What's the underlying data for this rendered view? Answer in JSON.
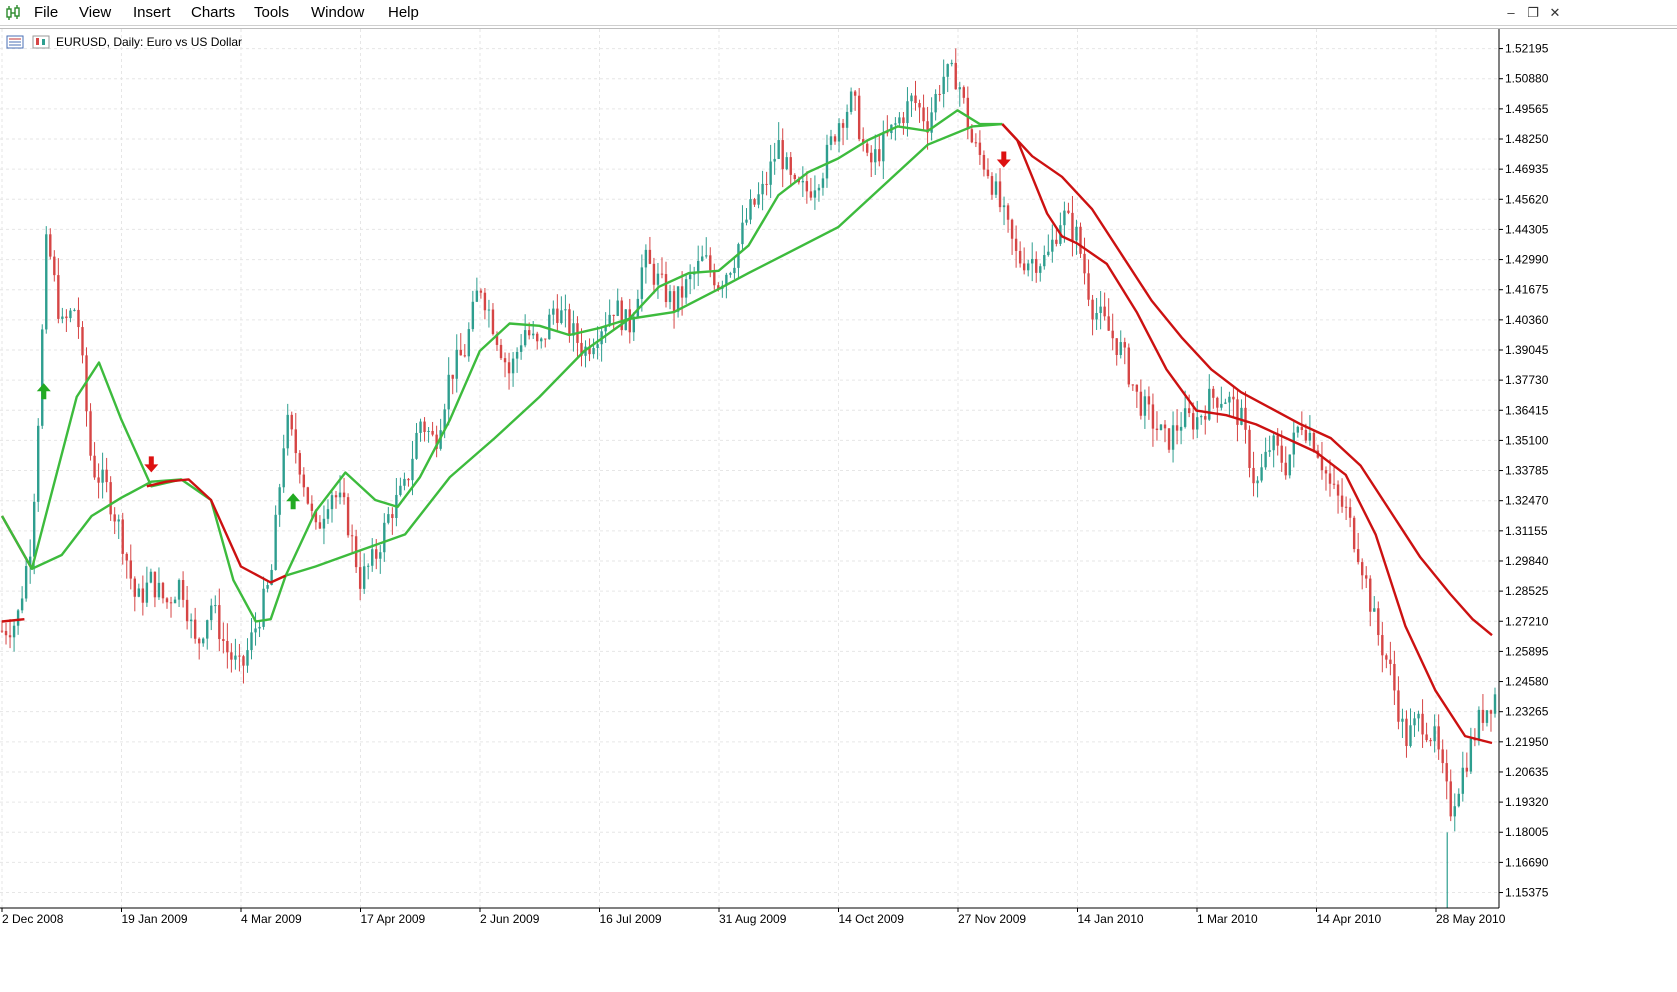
{
  "menu": {
    "items": [
      "File",
      "View",
      "Insert",
      "Charts",
      "Tools",
      "Window",
      "Help"
    ]
  },
  "window_controls": [
    "minimize",
    "restore",
    "close"
  ],
  "chart": {
    "symbol": "EURUSD",
    "timeframe": "Daily",
    "description": "Euro vs US Dollar",
    "title_text": "EURUSD, Daily:  Euro vs US Dollar"
  },
  "chart_data": {
    "type": "candlestick",
    "price_axis_labels": [
      "1.52195",
      "1.50880",
      "1.49565",
      "1.48250",
      "1.46935",
      "1.45620",
      "1.44305",
      "1.42990",
      "1.41675",
      "1.40360",
      "1.39045",
      "1.37730",
      "1.36415",
      "1.35100",
      "1.33785",
      "1.32470",
      "1.31155",
      "1.29840",
      "1.28525",
      "1.27210",
      "1.25895",
      "1.24580",
      "1.23265",
      "1.21950",
      "1.20635",
      "1.19320",
      "1.18005",
      "1.16690",
      "1.15375"
    ],
    "date_axis_labels": [
      "2 Dec 2008",
      "19 Jan 2009",
      "4 Mar 2009",
      "17 Apr 2009",
      "2 Jun 2009",
      "16 Jul 2009",
      "31 Aug 2009",
      "14 Oct 2009",
      "27 Nov 2009",
      "14 Jan 2010",
      "1 Mar 2010",
      "14 Apr 2010",
      "28 May 2010"
    ],
    "ylim": [
      1.147,
      1.527
    ],
    "colors": {
      "bull_candle": "#2e9e8f",
      "bear_candle": "#d64545",
      "bullish_ma": "#3dbb3d",
      "bearish_ma": "#cc1111",
      "up_arrow": "#22aa22",
      "down_arrow": "#dd1111",
      "grid": "#e6e6e6"
    },
    "price_path": [
      {
        "t": 0.0,
        "p": 1.268
      },
      {
        "t": 0.01,
        "p": 1.272
      },
      {
        "t": 0.02,
        "p": 1.31
      },
      {
        "t": 0.025,
        "p": 1.37
      },
      {
        "t": 0.03,
        "p": 1.44
      },
      {
        "t": 0.04,
        "p": 1.4
      },
      {
        "t": 0.05,
        "p": 1.41
      },
      {
        "t": 0.06,
        "p": 1.34
      },
      {
        "t": 0.07,
        "p": 1.33
      },
      {
        "t": 0.08,
        "p": 1.31
      },
      {
        "t": 0.09,
        "p": 1.28
      },
      {
        "t": 0.1,
        "p": 1.29
      },
      {
        "t": 0.11,
        "p": 1.28
      },
      {
        "t": 0.12,
        "p": 1.29
      },
      {
        "t": 0.13,
        "p": 1.26
      },
      {
        "t": 0.14,
        "p": 1.28
      },
      {
        "t": 0.15,
        "p": 1.26
      },
      {
        "t": 0.16,
        "p": 1.25
      },
      {
        "t": 0.17,
        "p": 1.27
      },
      {
        "t": 0.18,
        "p": 1.29
      },
      {
        "t": 0.19,
        "p": 1.36
      },
      {
        "t": 0.2,
        "p": 1.34
      },
      {
        "t": 0.21,
        "p": 1.31
      },
      {
        "t": 0.22,
        "p": 1.33
      },
      {
        "t": 0.23,
        "p": 1.32
      },
      {
        "t": 0.24,
        "p": 1.29
      },
      {
        "t": 0.25,
        "p": 1.3
      },
      {
        "t": 0.26,
        "p": 1.32
      },
      {
        "t": 0.27,
        "p": 1.33
      },
      {
        "t": 0.28,
        "p": 1.36
      },
      {
        "t": 0.29,
        "p": 1.35
      },
      {
        "t": 0.3,
        "p": 1.38
      },
      {
        "t": 0.31,
        "p": 1.39
      },
      {
        "t": 0.32,
        "p": 1.42
      },
      {
        "t": 0.33,
        "p": 1.4
      },
      {
        "t": 0.34,
        "p": 1.38
      },
      {
        "t": 0.35,
        "p": 1.4
      },
      {
        "t": 0.36,
        "p": 1.39
      },
      {
        "t": 0.37,
        "p": 1.41
      },
      {
        "t": 0.38,
        "p": 1.4
      },
      {
        "t": 0.39,
        "p": 1.39
      },
      {
        "t": 0.4,
        "p": 1.4
      },
      {
        "t": 0.41,
        "p": 1.41
      },
      {
        "t": 0.42,
        "p": 1.4
      },
      {
        "t": 0.43,
        "p": 1.43
      },
      {
        "t": 0.44,
        "p": 1.42
      },
      {
        "t": 0.45,
        "p": 1.41
      },
      {
        "t": 0.46,
        "p": 1.42
      },
      {
        "t": 0.47,
        "p": 1.43
      },
      {
        "t": 0.48,
        "p": 1.42
      },
      {
        "t": 0.49,
        "p": 1.43
      },
      {
        "t": 0.5,
        "p": 1.45
      },
      {
        "t": 0.51,
        "p": 1.46
      },
      {
        "t": 0.52,
        "p": 1.48
      },
      {
        "t": 0.53,
        "p": 1.46
      },
      {
        "t": 0.54,
        "p": 1.46
      },
      {
        "t": 0.55,
        "p": 1.47
      },
      {
        "t": 0.56,
        "p": 1.49
      },
      {
        "t": 0.57,
        "p": 1.5
      },
      {
        "t": 0.58,
        "p": 1.47
      },
      {
        "t": 0.59,
        "p": 1.48
      },
      {
        "t": 0.6,
        "p": 1.49
      },
      {
        "t": 0.61,
        "p": 1.5
      },
      {
        "t": 0.62,
        "p": 1.49
      },
      {
        "t": 0.63,
        "p": 1.51
      },
      {
        "t": 0.64,
        "p": 1.51
      },
      {
        "t": 0.65,
        "p": 1.48
      },
      {
        "t": 0.66,
        "p": 1.47
      },
      {
        "t": 0.67,
        "p": 1.45
      },
      {
        "t": 0.68,
        "p": 1.43
      },
      {
        "t": 0.69,
        "p": 1.43
      },
      {
        "t": 0.7,
        "p": 1.43
      },
      {
        "t": 0.71,
        "p": 1.45
      },
      {
        "t": 0.72,
        "p": 1.44
      },
      {
        "t": 0.73,
        "p": 1.41
      },
      {
        "t": 0.74,
        "p": 1.4
      },
      {
        "t": 0.75,
        "p": 1.39
      },
      {
        "t": 0.76,
        "p": 1.37
      },
      {
        "t": 0.77,
        "p": 1.36
      },
      {
        "t": 0.78,
        "p": 1.35
      },
      {
        "t": 0.79,
        "p": 1.36
      },
      {
        "t": 0.8,
        "p": 1.36
      },
      {
        "t": 0.81,
        "p": 1.37
      },
      {
        "t": 0.82,
        "p": 1.37
      },
      {
        "t": 0.83,
        "p": 1.36
      },
      {
        "t": 0.84,
        "p": 1.33
      },
      {
        "t": 0.85,
        "p": 1.35
      },
      {
        "t": 0.86,
        "p": 1.34
      },
      {
        "t": 0.87,
        "p": 1.36
      },
      {
        "t": 0.88,
        "p": 1.35
      },
      {
        "t": 0.89,
        "p": 1.33
      },
      {
        "t": 0.9,
        "p": 1.32
      },
      {
        "t": 0.91,
        "p": 1.3
      },
      {
        "t": 0.92,
        "p": 1.27
      },
      {
        "t": 0.93,
        "p": 1.25
      },
      {
        "t": 0.94,
        "p": 1.22
      },
      {
        "t": 0.95,
        "p": 1.23
      },
      {
        "t": 0.96,
        "p": 1.22
      },
      {
        "t": 0.97,
        "p": 1.19
      },
      {
        "t": 0.98,
        "p": 1.21
      },
      {
        "t": 0.99,
        "p": 1.23
      },
      {
        "t": 1.0,
        "p": 1.24
      }
    ],
    "ma_fast": [
      {
        "t": 0.0,
        "p": 1.318
      },
      {
        "t": 0.02,
        "p": 1.295
      },
      {
        "t": 0.03,
        "p": 1.32
      },
      {
        "t": 0.05,
        "p": 1.37
      },
      {
        "t": 0.065,
        "p": 1.385
      },
      {
        "t": 0.08,
        "p": 1.36
      },
      {
        "t": 0.1,
        "p": 1.331
      },
      {
        "t": 0.12,
        "p": 1.334
      },
      {
        "t": 0.14,
        "p": 1.325
      },
      {
        "t": 0.155,
        "p": 1.29
      },
      {
        "t": 0.17,
        "p": 1.272
      },
      {
        "t": 0.18,
        "p": 1.273
      },
      {
        "t": 0.19,
        "p": 1.292
      },
      {
        "t": 0.21,
        "p": 1.32
      },
      {
        "t": 0.23,
        "p": 1.337
      },
      {
        "t": 0.25,
        "p": 1.325
      },
      {
        "t": 0.265,
        "p": 1.322
      },
      {
        "t": 0.28,
        "p": 1.335
      },
      {
        "t": 0.3,
        "p": 1.36
      },
      {
        "t": 0.32,
        "p": 1.39
      },
      {
        "t": 0.34,
        "p": 1.402
      },
      {
        "t": 0.36,
        "p": 1.401
      },
      {
        "t": 0.38,
        "p": 1.397
      },
      {
        "t": 0.4,
        "p": 1.4
      },
      {
        "t": 0.42,
        "p": 1.404
      },
      {
        "t": 0.44,
        "p": 1.418
      },
      {
        "t": 0.46,
        "p": 1.424
      },
      {
        "t": 0.48,
        "p": 1.425
      },
      {
        "t": 0.5,
        "p": 1.436
      },
      {
        "t": 0.52,
        "p": 1.458
      },
      {
        "t": 0.54,
        "p": 1.468
      },
      {
        "t": 0.56,
        "p": 1.474
      },
      {
        "t": 0.58,
        "p": 1.482
      },
      {
        "t": 0.6,
        "p": 1.488
      },
      {
        "t": 0.62,
        "p": 1.486
      },
      {
        "t": 0.64,
        "p": 1.495
      },
      {
        "t": 0.655,
        "p": 1.489
      },
      {
        "t": 0.67,
        "p": 1.489
      }
    ],
    "ma_slow_bull": [
      {
        "t": 0.02,
        "p": 1.295
      },
      {
        "t": 0.04,
        "p": 1.301
      },
      {
        "t": 0.06,
        "p": 1.318
      },
      {
        "t": 0.08,
        "p": 1.326
      },
      {
        "t": 0.1,
        "p": 1.333
      },
      {
        "t": 0.12,
        "p": 1.334
      }
    ],
    "ma_slow_bull_2": [
      {
        "t": 0.19,
        "p": 1.292
      },
      {
        "t": 0.21,
        "p": 1.296
      },
      {
        "t": 0.24,
        "p": 1.303
      },
      {
        "t": 0.27,
        "p": 1.31
      },
      {
        "t": 0.3,
        "p": 1.335
      },
      {
        "t": 0.33,
        "p": 1.352
      },
      {
        "t": 0.36,
        "p": 1.37
      },
      {
        "t": 0.39,
        "p": 1.39
      },
      {
        "t": 0.42,
        "p": 1.404
      },
      {
        "t": 0.45,
        "p": 1.407
      },
      {
        "t": 0.48,
        "p": 1.417
      },
      {
        "t": 0.5,
        "p": 1.424
      },
      {
        "t": 0.53,
        "p": 1.434
      },
      {
        "t": 0.56,
        "p": 1.444
      },
      {
        "t": 0.59,
        "p": 1.462
      },
      {
        "t": 0.62,
        "p": 1.48
      },
      {
        "t": 0.65,
        "p": 1.488
      },
      {
        "t": 0.67,
        "p": 1.489
      }
    ],
    "ma_slow_bear": [
      {
        "t": 0.0,
        "p": 1.272
      },
      {
        "t": 0.015,
        "p": 1.273
      }
    ],
    "ma_bear_fast": [
      {
        "t": 0.0,
        "p": 1.318
      },
      {
        "t": 0.02,
        "p": 1.295
      }
    ],
    "ma_bear_1": [
      {
        "t": 0.097,
        "p": 1.331
      },
      {
        "t": 0.11,
        "p": 1.333
      },
      {
        "t": 0.125,
        "p": 1.334
      },
      {
        "t": 0.14,
        "p": 1.325
      },
      {
        "t": 0.16,
        "p": 1.296
      },
      {
        "t": 0.18,
        "p": 1.289
      },
      {
        "t": 0.19,
        "p": 1.292
      }
    ],
    "ma_bear_2": [
      {
        "t": 0.67,
        "p": 1.489
      },
      {
        "t": 0.69,
        "p": 1.475
      },
      {
        "t": 0.71,
        "p": 1.466
      },
      {
        "t": 0.73,
        "p": 1.452
      },
      {
        "t": 0.75,
        "p": 1.432
      },
      {
        "t": 0.77,
        "p": 1.412
      },
      {
        "t": 0.79,
        "p": 1.396
      },
      {
        "t": 0.81,
        "p": 1.382
      },
      {
        "t": 0.83,
        "p": 1.372
      },
      {
        "t": 0.85,
        "p": 1.365
      },
      {
        "t": 0.87,
        "p": 1.358
      },
      {
        "t": 0.89,
        "p": 1.352
      },
      {
        "t": 0.91,
        "p": 1.34
      },
      {
        "t": 0.93,
        "p": 1.32
      },
      {
        "t": 0.95,
        "p": 1.3
      },
      {
        "t": 0.97,
        "p": 1.284
      },
      {
        "t": 0.985,
        "p": 1.273
      },
      {
        "t": 0.998,
        "p": 1.266
      }
    ],
    "ma_bear_3": [
      {
        "t": 0.67,
        "p": 1.489
      },
      {
        "t": 0.68,
        "p": 1.482
      },
      {
        "t": 0.69,
        "p": 1.466
      },
      {
        "t": 0.7,
        "p": 1.45
      },
      {
        "t": 0.71,
        "p": 1.44
      },
      {
        "t": 0.72,
        "p": 1.437
      },
      {
        "t": 0.74,
        "p": 1.428
      },
      {
        "t": 0.76,
        "p": 1.407
      },
      {
        "t": 0.78,
        "p": 1.382
      },
      {
        "t": 0.8,
        "p": 1.364
      },
      {
        "t": 0.82,
        "p": 1.362
      },
      {
        "t": 0.84,
        "p": 1.358
      },
      {
        "t": 0.86,
        "p": 1.352
      },
      {
        "t": 0.88,
        "p": 1.346
      },
      {
        "t": 0.9,
        "p": 1.336
      },
      {
        "t": 0.92,
        "p": 1.31
      },
      {
        "t": 0.94,
        "p": 1.27
      },
      {
        "t": 0.96,
        "p": 1.242
      },
      {
        "t": 0.98,
        "p": 1.222
      },
      {
        "t": 0.998,
        "p": 1.219
      }
    ],
    "signals": [
      {
        "type": "up",
        "t": 0.028,
        "p": 1.372
      },
      {
        "type": "down",
        "t": 0.1,
        "p": 1.341
      },
      {
        "type": "up",
        "t": 0.195,
        "p": 1.324
      },
      {
        "type": "down",
        "t": 0.671,
        "p": 1.474
      }
    ],
    "spike": {
      "t": 0.968,
      "low": 1.147,
      "high": 1.18
    }
  }
}
